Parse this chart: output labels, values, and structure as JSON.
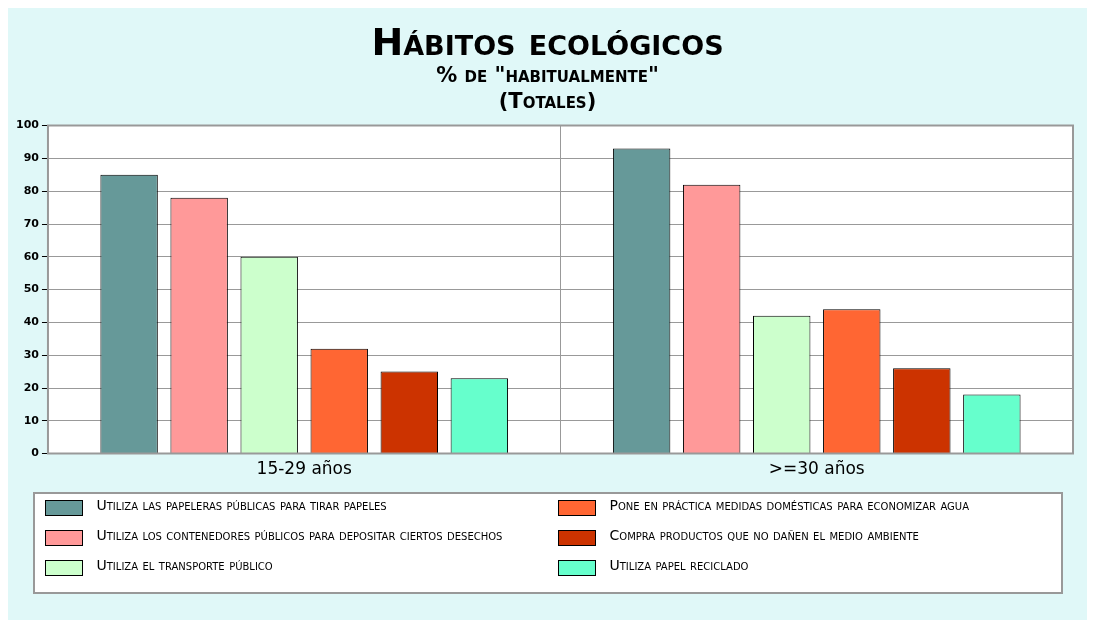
{
  "chart_data": {
    "type": "bar",
    "title": "Hábitos ecológicos",
    "subtitle": "% de \"habitualmente\"\n(Totales)",
    "categories": [
      "15-29 años",
      ">=30 años"
    ],
    "series": [
      {
        "name": "Utiliza las papeleras públicas para tirar papeles",
        "color": "#669999",
        "values": [
          85,
          93
        ]
      },
      {
        "name": "Utiliza los contenedores públicos para depositar ciertos desechos",
        "color": "#ff9999",
        "values": [
          78,
          82
        ]
      },
      {
        "name": "Utiliza el transporte público",
        "color": "#ccffcc",
        "values": [
          60,
          42
        ]
      },
      {
        "name": "Pone en práctica medidas domésticas para economizar agua",
        "color": "#ff6633",
        "values": [
          32,
          44
        ]
      },
      {
        "name": "Compra productos que no dañen el medio ambiente",
        "color": "#cc3300",
        "values": [
          25,
          26
        ]
      },
      {
        "name": "Utiliza papel reciclado",
        "color": "#66ffcc",
        "values": [
          23,
          18
        ]
      }
    ],
    "ylim": [
      0,
      100
    ],
    "yticks": [
      0,
      10,
      20,
      30,
      40,
      50,
      60,
      70,
      80,
      90,
      100
    ],
    "grid": true,
    "legend": "bottom"
  }
}
